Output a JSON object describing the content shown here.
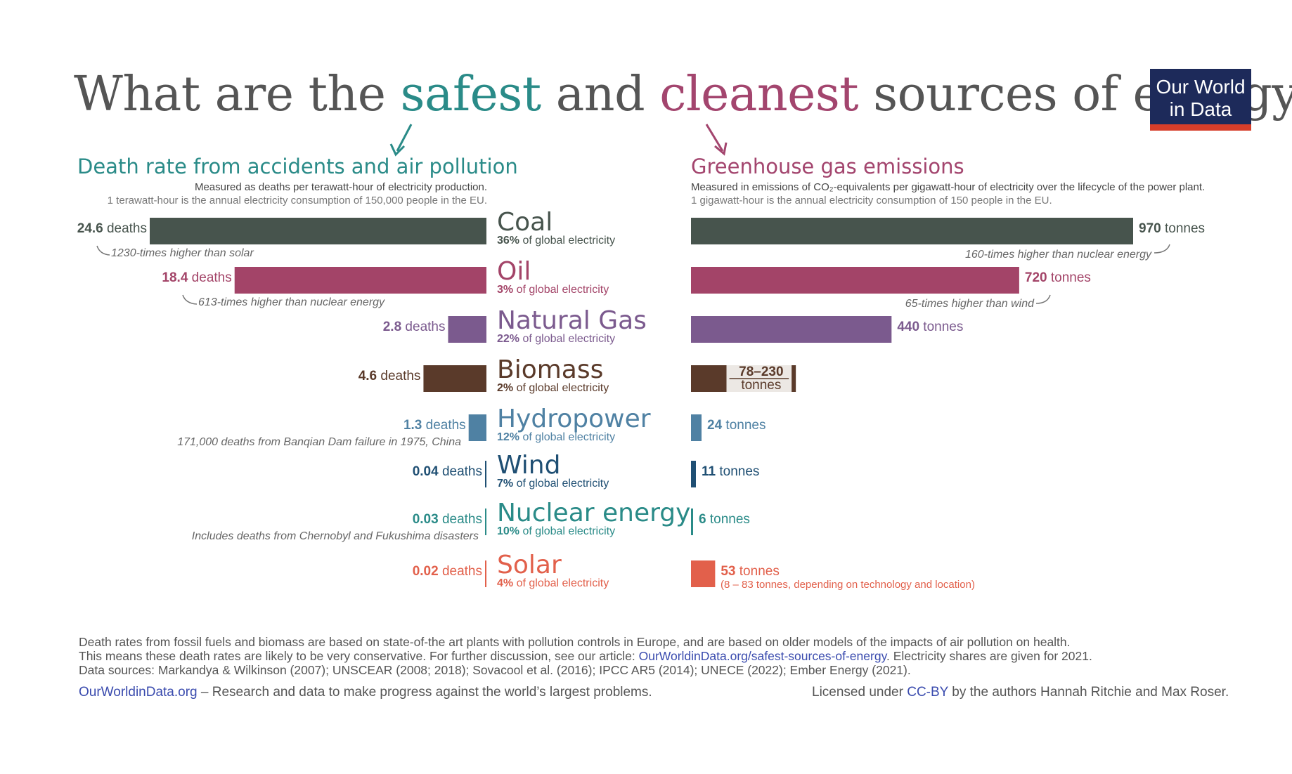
{
  "header": {
    "title_part1": "What are the ",
    "title_safe": "safest",
    "title_part2": " and ",
    "title_clean": "cleanest",
    "title_part3": " sources of energy?",
    "logo_line1": "Our World",
    "logo_line2": "in Data"
  },
  "colors": {
    "teal": "#2a8b88",
    "magenta": "#a3456e",
    "coal": "#47544d",
    "oil": "#a34468",
    "gas": "#7b5a8e",
    "biomass": "#5a3a2a",
    "hydro": "#4f81a3",
    "wind": "#1f4f73",
    "nuclear": "#2a8b88",
    "solar": "#e2604b"
  },
  "chart_data": [
    {
      "type": "bar",
      "title": "Death rate from accidents and air pollution",
      "subtitle": "Measured as deaths per terawatt-hour of electricity production.",
      "subtitle2": "1 terawatt-hour is the annual electricity consumption of 150,000 people in the EU.",
      "categories": [
        "Coal",
        "Oil",
        "Natural Gas",
        "Biomass",
        "Hydropower",
        "Wind",
        "Nuclear energy",
        "Solar"
      ],
      "values": [
        24.6,
        18.4,
        2.8,
        4.6,
        1.3,
        0.04,
        0.03,
        0.02
      ],
      "value_labels": [
        "24.6",
        "18.4",
        "2.8",
        "4.6",
        "1.3",
        "0.04",
        "0.03",
        "0.02"
      ],
      "unit": "deaths",
      "annotations": {
        "Coal": "1230-times higher than solar",
        "Oil": "613-times higher than nuclear energy",
        "Hydropower": "171,000 deaths from Banqian Dam failure in 1975, China",
        "Nuclear energy": "Includes deaths from Chernobyl and Fukushima disasters"
      }
    },
    {
      "type": "bar",
      "title": "Greenhouse gas emissions",
      "subtitle": "Measured in emissions of CO₂-equivalents per gigawatt-hour of electricity over the lifecycle of the power plant.",
      "subtitle2": "1 gigawatt-hour is the annual electricity consumption of 150 people in the EU.",
      "categories": [
        "Coal",
        "Oil",
        "Natural Gas",
        "Biomass",
        "Hydropower",
        "Wind",
        "Nuclear energy",
        "Solar"
      ],
      "values": [
        970,
        720,
        440,
        100,
        24,
        11,
        6,
        53
      ],
      "value_labels": [
        "970",
        "720",
        "440",
        "78–230",
        "24",
        "11",
        "6",
        "53"
      ],
      "biomass_range": [
        78,
        230
      ],
      "unit": "tonnes",
      "annotations": {
        "Coal": "160-times higher than nuclear energy",
        "Oil": "65-times higher than wind",
        "Solar": "(8 – 83 tonnes, depending on technology and location)"
      }
    }
  ],
  "sources": [
    {
      "name": "Coal",
      "share": "36%",
      "share_text": " of global electricity"
    },
    {
      "name": "Oil",
      "share": "3%",
      "share_text": " of global electricity"
    },
    {
      "name": "Natural Gas",
      "share": "22%",
      "share_text": " of global electricity"
    },
    {
      "name": "Biomass",
      "share": "2%",
      "share_text": " of global electricity"
    },
    {
      "name": "Hydropower",
      "share": "12%",
      "share_text": " of global electricity"
    },
    {
      "name": "Wind",
      "share": "7%",
      "share_text": " of global electricity"
    },
    {
      "name": "Nuclear energy",
      "share": "10%",
      "share_text": " of global electricity"
    },
    {
      "name": "Solar",
      "share": "4%",
      "share_text": " of global electricity"
    }
  ],
  "notes": {
    "line1": "Death rates from fossil fuels and biomass are based on state-of-the art plants with pollution controls in Europe, and are based on older models of the impacts of air pollution on health.",
    "line2a": "This means these death rates are likely to be very conservative. For further discussion, see our article: ",
    "line2_link": "OurWorldinData.org/safest-sources-of-energy",
    "line2b": ". Electricity shares are given for 2021.",
    "line3": "Data sources: Markandya & Wilkinson (2007); UNSCEAR (2008; 2018); Sovacool et al. (2016); IPCC AR5 (2014); UNECE (2022); Ember Energy (2021)."
  },
  "footer": {
    "site_link": "OurWorldinData.org",
    "tagline": " – Research and data to make progress against the world’s largest problems.",
    "license_pre": "Licensed under ",
    "license_link": "CC-BY",
    "license_post": " by the authors Hannah Ritchie and Max Roser."
  }
}
